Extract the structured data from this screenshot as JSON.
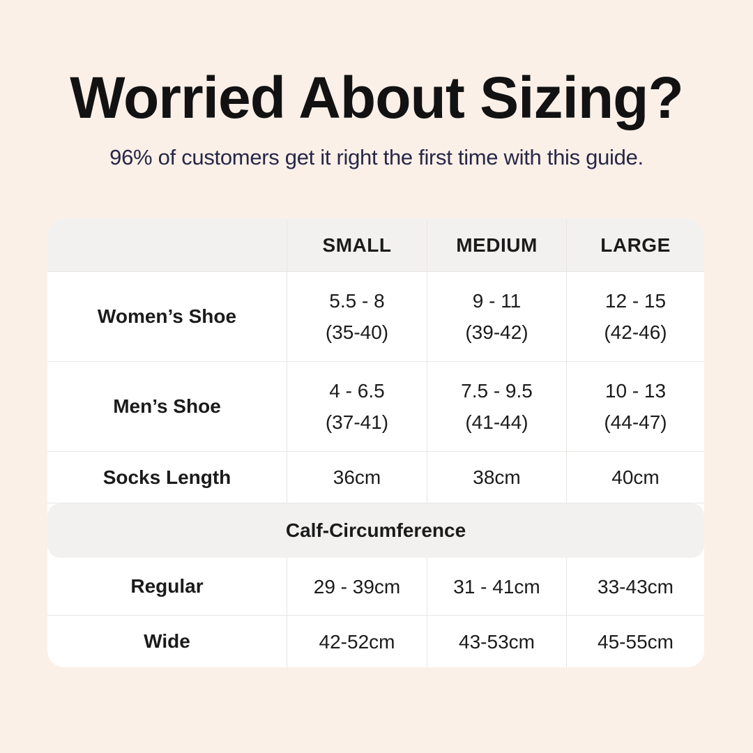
{
  "colors": {
    "bg": "#fbf0e8",
    "table-bg": "#ffffff",
    "band-bg": "#f3f1f0",
    "border": "#e9e6e3",
    "title": "#121212",
    "subtitle": "#272747",
    "text": "#1b1b1b"
  },
  "header": {
    "title": "Worried About Sizing?",
    "subtitle": "96% of customers get it right the first time with this guide."
  },
  "table": {
    "columns": [
      "SMALL",
      "MEDIUM",
      "LARGE"
    ],
    "rows": [
      {
        "label": "Women’s Shoe",
        "cells": [
          [
            "5.5 - 8",
            "(35-40)"
          ],
          [
            "9 - 11",
            "(39-42)"
          ],
          [
            "12 - 15",
            "(42-46)"
          ]
        ]
      },
      {
        "label": "Men’s Shoe",
        "cells": [
          [
            "4 - 6.5",
            "(37-41)"
          ],
          [
            "7.5 - 9.5",
            "(41-44)"
          ],
          [
            "10 - 13",
            "(44-47)"
          ]
        ]
      },
      {
        "label": "Socks Length",
        "cells": [
          [
            "36cm"
          ],
          [
            "38cm"
          ],
          [
            "40cm"
          ]
        ]
      }
    ],
    "section_header": "Calf-Circumference",
    "section_rows": [
      {
        "label": "Regular",
        "cells": [
          [
            "29 - 39cm"
          ],
          [
            "31 - 41cm"
          ],
          [
            "33-43cm"
          ]
        ]
      },
      {
        "label": "Wide",
        "cells": [
          [
            "42-52cm"
          ],
          [
            "43-53cm"
          ],
          [
            "45-55cm"
          ]
        ]
      }
    ]
  }
}
